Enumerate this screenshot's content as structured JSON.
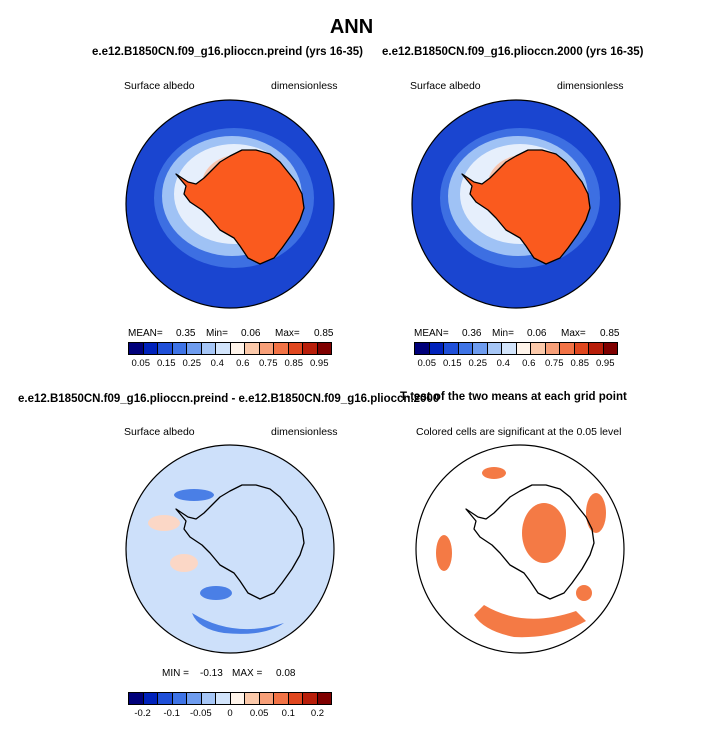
{
  "main_title": "ANN",
  "panels": {
    "p1": {
      "title": "e.e12.B1850CN.f09_g16.plioccn.preind (yrs 16-35)",
      "left_label": "Surface albedo",
      "right_label": "dimensionless",
      "stats": {
        "mean_label": "MEAN=",
        "mean": "0.35",
        "min_label": "Min=",
        "min": "0.06",
        "max_label": "Max=",
        "max": "0.85"
      }
    },
    "p2": {
      "title": "e.e12.B1850CN.f09_g16.plioccn.2000 (yrs 16-35)",
      "left_label": "Surface albedo",
      "right_label": "dimensionless",
      "stats": {
        "mean_label": "MEAN=",
        "mean": "0.36",
        "min_label": "Min=",
        "min": "0.06",
        "max_label": "Max=",
        "max": "0.85"
      }
    },
    "p3": {
      "title": "e.e12.B1850CN.f09_g16.plioccn.preind - e.e12.B1850CN.f09_g16.plioccn.2000",
      "left_label": "Surface albedo",
      "right_label": "dimensionless",
      "stats": {
        "min_label": "MIN =",
        "min": "-0.13",
        "max_label": "MAX =",
        "max": "0.08"
      }
    },
    "p4": {
      "title": "T-test of the two means at each grid point",
      "subtitle": "Colored cells are significant at the 0.05 level"
    }
  },
  "colorbars": {
    "abs": {
      "ticks": [
        "0.05",
        "0.15",
        "0.25",
        "0.4",
        "0.6",
        "0.75",
        "0.85",
        "0.95"
      ],
      "colors": [
        "#00007a",
        "#0022bb",
        "#1f4fd8",
        "#3f74e6",
        "#6e9cef",
        "#a6c6f6",
        "#d2e4fb",
        "#fff4ea",
        "#fbc9aa",
        "#f79f78",
        "#f27346",
        "#e0471f",
        "#b81e0a",
        "#7f0000"
      ]
    },
    "diff": {
      "ticks": [
        "-0.2",
        "-0.1",
        "-0.05",
        "0",
        "0.05",
        "0.1",
        "0.2"
      ],
      "colors": [
        "#00007a",
        "#0022bb",
        "#1f4fd8",
        "#3f74e6",
        "#6e9cef",
        "#a6c6f6",
        "#d2e4fb",
        "#fff4ea",
        "#fbc9aa",
        "#f79f78",
        "#f27346",
        "#e0471f",
        "#b81e0a",
        "#7f0000"
      ]
    }
  },
  "map_colors": {
    "ocean": "#1a45d0",
    "ice_band_1": "#3d6fe2",
    "ice_band_2": "#9fc2f5",
    "ice_band_3": "#e6effc",
    "ice_band_4": "#f7c5b0",
    "land": "#fa5a1e",
    "diff_background": "#cde0fa",
    "diff_positive": "#fbd7c6",
    "diff_negative": "#4a7fe6",
    "significant": "#f47a45"
  }
}
